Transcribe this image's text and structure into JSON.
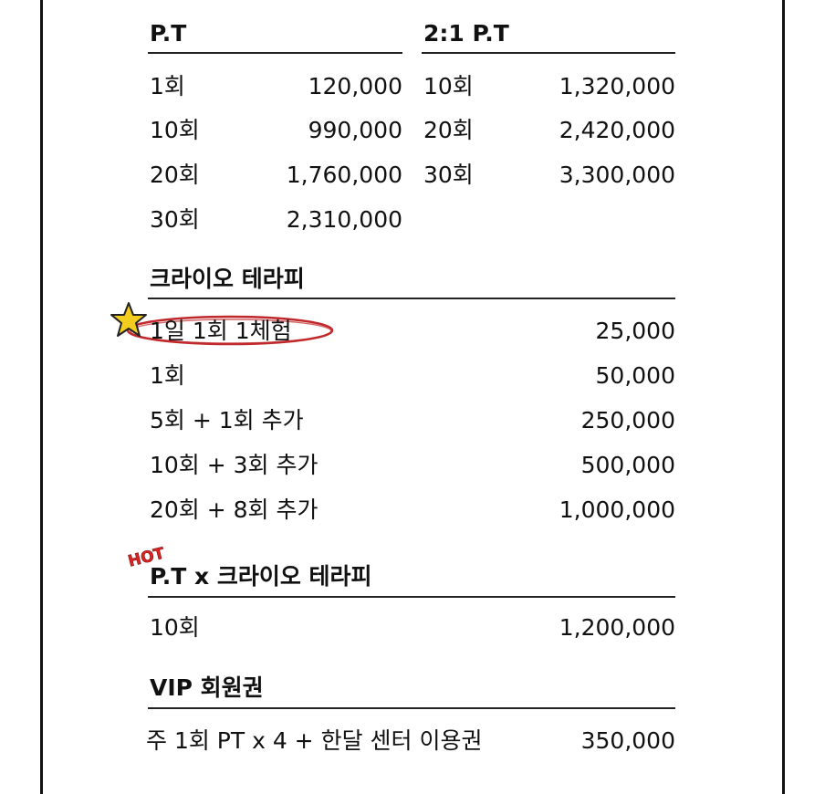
{
  "pt": {
    "title": "P.T",
    "rows": [
      {
        "label": "1회",
        "price": "120,000"
      },
      {
        "label": "10회",
        "price": "990,000"
      },
      {
        "label": "20회",
        "price": "1,760,000"
      },
      {
        "label": "30회",
        "price": "2,310,000"
      }
    ]
  },
  "pt21": {
    "title": "2:1 P.T",
    "rows": [
      {
        "label": "10회",
        "price": "1,320,000"
      },
      {
        "label": "20회",
        "price": "2,420,000"
      },
      {
        "label": "30회",
        "price": "3,300,000"
      }
    ]
  },
  "cryo": {
    "title": "크라이오 테라피",
    "rows": [
      {
        "label": "1일 1회 1체험",
        "price": "25,000"
      },
      {
        "label": "1회",
        "price": "50,000"
      },
      {
        "label": "5회 + 1회 추가",
        "price": "250,000"
      },
      {
        "label": "10회 + 3회 추가",
        "price": "500,000"
      },
      {
        "label": "20회 + 8회 추가",
        "price": "1,000,000"
      }
    ]
  },
  "ptcryo": {
    "badge": "HOT",
    "title": "P.T x 크라이오 테라피",
    "rows": [
      {
        "label": "10회",
        "price": "1,200,000"
      }
    ]
  },
  "vip": {
    "title": "VIP 회원권",
    "rows": [
      {
        "label": "주 1회 PT x 4 + 한달 센터 이용권",
        "price": "350,000"
      }
    ]
  },
  "colors": {
    "highlight_ring": "#c0282b",
    "star": "#f2cc1f",
    "hot_badge": "#e02222"
  },
  "icons": {
    "highlight_star": "star-icon",
    "hot_badge": "hot-badge-icon"
  }
}
